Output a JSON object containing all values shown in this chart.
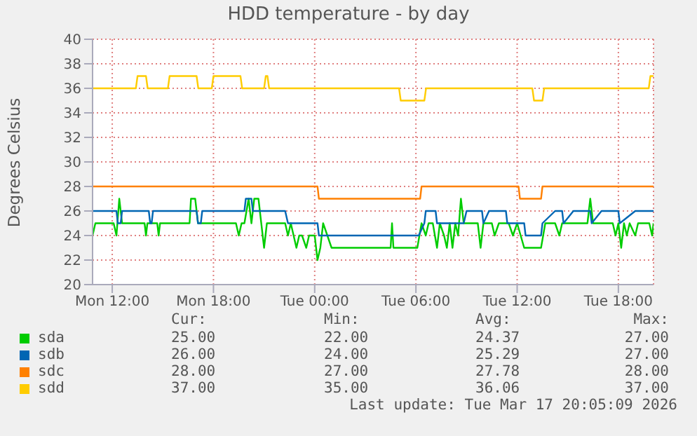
{
  "chart_data": {
    "type": "line",
    "title": "HDD temperature - by day",
    "ylabel": "Degrees Celsius",
    "xlim": [
      "2026-03-16T10:50",
      "2026-03-17T20:05"
    ],
    "xticks": [
      {
        "value": "2026-03-16T12:00",
        "label": "Mon 12:00"
      },
      {
        "value": "2026-03-16T18:00",
        "label": "Mon 18:00"
      },
      {
        "value": "2026-03-17T00:00",
        "label": "Tue 00:00"
      },
      {
        "value": "2026-03-17T06:00",
        "label": "Tue 06:00"
      },
      {
        "value": "2026-03-17T12:00",
        "label": "Tue 12:00"
      },
      {
        "value": "2026-03-17T18:00",
        "label": "Tue 18:00"
      }
    ],
    "ylim": [
      20,
      40
    ],
    "yticks": [
      20,
      22,
      24,
      26,
      28,
      30,
      32,
      34,
      36,
      38,
      40
    ],
    "grid": true,
    "legend": "bottom",
    "marker": "none",
    "line_style": "solid",
    "series": [
      {
        "name": "sda",
        "color": "#00cc00",
        "x": [
          "2026-03-16T10:50",
          "2026-03-16T11:00",
          "2026-03-16T12:05",
          "2026-03-16T12:15",
          "2026-03-16T12:25",
          "2026-03-16T12:35",
          "2026-03-16T13:55",
          "2026-03-16T14:00",
          "2026-03-16T14:05",
          "2026-03-16T14:40",
          "2026-03-16T14:45",
          "2026-03-16T14:50",
          "2026-03-16T16:35",
          "2026-03-16T16:40",
          "2026-03-16T16:55",
          "2026-03-16T17:05",
          "2026-03-16T19:20",
          "2026-03-16T19:30",
          "2026-03-16T19:40",
          "2026-03-16T19:50",
          "2026-03-16T20:05",
          "2026-03-16T20:15",
          "2026-03-16T20:25",
          "2026-03-16T20:40",
          "2026-03-16T20:50",
          "2026-03-16T21:00",
          "2026-03-16T21:10",
          "2026-03-16T22:15",
          "2026-03-16T22:25",
          "2026-03-16T22:35",
          "2026-03-16T22:45",
          "2026-03-16T22:55",
          "2026-03-16T23:05",
          "2026-03-16T23:15",
          "2026-03-16T23:30",
          "2026-03-16T23:40",
          "2026-03-17T00:00",
          "2026-03-17T00:10",
          "2026-03-17T00:20",
          "2026-03-17T00:30",
          "2026-03-17T00:45",
          "2026-03-17T01:00",
          "2026-03-17T04:30",
          "2026-03-17T04:35",
          "2026-03-17T04:40",
          "2026-03-17T06:05",
          "2026-03-17T06:20",
          "2026-03-17T06:35",
          "2026-03-17T06:45",
          "2026-03-17T07:00",
          "2026-03-17T07:15",
          "2026-03-17T07:25",
          "2026-03-17T07:40",
          "2026-03-17T07:50",
          "2026-03-17T08:00",
          "2026-03-17T08:10",
          "2026-03-17T08:20",
          "2026-03-17T08:30",
          "2026-03-17T08:40",
          "2026-03-17T08:50",
          "2026-03-17T09:40",
          "2026-03-17T09:50",
          "2026-03-17T10:00",
          "2026-03-17T10:30",
          "2026-03-17T10:40",
          "2026-03-17T10:55",
          "2026-03-17T11:30",
          "2026-03-17T11:45",
          "2026-03-17T12:00",
          "2026-03-17T12:25",
          "2026-03-17T13:25",
          "2026-03-17T13:40",
          "2026-03-17T14:15",
          "2026-03-17T14:30",
          "2026-03-17T14:40",
          "2026-03-17T16:10",
          "2026-03-17T16:20",
          "2026-03-17T16:30",
          "2026-03-17T17:40",
          "2026-03-17T17:50",
          "2026-03-17T18:00",
          "2026-03-17T18:10",
          "2026-03-17T18:20",
          "2026-03-17T18:30",
          "2026-03-17T18:40",
          "2026-03-17T19:00",
          "2026-03-17T19:10",
          "2026-03-17T19:50",
          "2026-03-17T20:00",
          "2026-03-17T20:05"
        ],
        "values": [
          24,
          25,
          25,
          24,
          27,
          25,
          25,
          24,
          25,
          25,
          24,
          25,
          25,
          27,
          27,
          25,
          25,
          24,
          25,
          25,
          27,
          25,
          27,
          27,
          25,
          23,
          25,
          25,
          24,
          25,
          24,
          23,
          24,
          24,
          23,
          24,
          24,
          22,
          23,
          25,
          24,
          23,
          23,
          25,
          23,
          23,
          25,
          24,
          25,
          25,
          23,
          25,
          24,
          23,
          25,
          23,
          25,
          24,
          27,
          25,
          25,
          23,
          25,
          25,
          24,
          25,
          25,
          24,
          25,
          23,
          23,
          25,
          25,
          24,
          25,
          25,
          27,
          25,
          25,
          24,
          25,
          23,
          25,
          24,
          25,
          24,
          25,
          25,
          24,
          25
        ]
      },
      {
        "name": "sdb",
        "color": "#0066b3",
        "x": [
          "2026-03-16T10:50",
          "2026-03-16T12:15",
          "2026-03-16T12:20",
          "2026-03-16T12:30",
          "2026-03-16T12:35",
          "2026-03-16T14:10",
          "2026-03-16T14:15",
          "2026-03-16T14:20",
          "2026-03-16T14:25",
          "2026-03-16T17:00",
          "2026-03-16T17:05",
          "2026-03-16T17:15",
          "2026-03-16T17:20",
          "2026-03-16T19:50",
          "2026-03-16T19:55",
          "2026-03-16T20:15",
          "2026-03-16T20:20",
          "2026-03-16T22:15",
          "2026-03-16T22:25",
          "2026-03-17T00:10",
          "2026-03-17T00:15",
          "2026-03-17T06:10",
          "2026-03-17T06:30",
          "2026-03-17T06:35",
          "2026-03-17T07:10",
          "2026-03-17T07:15",
          "2026-03-17T08:50",
          "2026-03-17T09:00",
          "2026-03-17T09:55",
          "2026-03-17T10:00",
          "2026-03-17T10:20",
          "2026-03-17T11:20",
          "2026-03-17T11:25",
          "2026-03-17T12:25",
          "2026-03-17T12:30",
          "2026-03-17T13:25",
          "2026-03-17T13:30",
          "2026-03-17T14:15",
          "2026-03-17T14:40",
          "2026-03-17T14:45",
          "2026-03-17T15:20",
          "2026-03-17T16:20",
          "2026-03-17T16:25",
          "2026-03-17T17:00",
          "2026-03-17T18:00",
          "2026-03-17T18:05",
          "2026-03-17T19:00",
          "2026-03-17T20:05"
        ],
        "values": [
          26,
          26,
          25,
          25,
          26,
          26,
          25,
          25,
          26,
          26,
          25,
          25,
          26,
          26,
          27,
          27,
          26,
          26,
          25,
          25,
          24,
          24,
          25,
          26,
          26,
          25,
          25,
          26,
          26,
          25,
          26,
          26,
          25,
          25,
          24,
          24,
          25,
          26,
          26,
          25,
          26,
          26,
          25,
          26,
          26,
          25,
          26,
          26
        ]
      },
      {
        "name": "sdc",
        "color": "#ff8000",
        "x": [
          "2026-03-16T10:50",
          "2026-03-17T00:10",
          "2026-03-17T00:15",
          "2026-03-17T06:15",
          "2026-03-17T06:20",
          "2026-03-17T12:05",
          "2026-03-17T12:10",
          "2026-03-17T13:25",
          "2026-03-17T13:30",
          "2026-03-17T20:05"
        ],
        "values": [
          28,
          28,
          27,
          27,
          28,
          28,
          27,
          27,
          28,
          28
        ]
      },
      {
        "name": "sdd",
        "color": "#ffcc00",
        "x": [
          "2026-03-16T10:50",
          "2026-03-16T13:24",
          "2026-03-16T13:30",
          "2026-03-16T14:00",
          "2026-03-16T14:06",
          "2026-03-16T15:18",
          "2026-03-16T15:24",
          "2026-03-16T17:00",
          "2026-03-16T17:06",
          "2026-03-16T17:54",
          "2026-03-16T18:00",
          "2026-03-16T19:36",
          "2026-03-16T19:42",
          "2026-03-16T21:00",
          "2026-03-16T21:06",
          "2026-03-16T21:12",
          "2026-03-16T21:18",
          "2026-03-17T05:00",
          "2026-03-17T05:06",
          "2026-03-17T06:30",
          "2026-03-17T06:36",
          "2026-03-17T12:54",
          "2026-03-17T13:00",
          "2026-03-17T13:30",
          "2026-03-17T13:36",
          "2026-03-17T19:48",
          "2026-03-17T19:54",
          "2026-03-17T20:05"
        ],
        "values": [
          36,
          36,
          37,
          37,
          36,
          36,
          37,
          37,
          36,
          36,
          37,
          37,
          36,
          36,
          37,
          37,
          36,
          36,
          35,
          35,
          36,
          36,
          35,
          35,
          36,
          36,
          37,
          37
        ]
      }
    ],
    "annotations": [
      "Cur:",
      "Min:",
      "Avg:",
      "Max:",
      "25.00",
      "22.00",
      "24.37",
      "27.00",
      "26.00",
      "24.00",
      "25.29",
      "27.00",
      "28.00",
      "27.00",
      "27.78",
      "28.00",
      "37.00",
      "35.00",
      "36.06",
      "37.00",
      "Last update: Tue Mar 17 20:05:09 2026"
    ]
  }
}
